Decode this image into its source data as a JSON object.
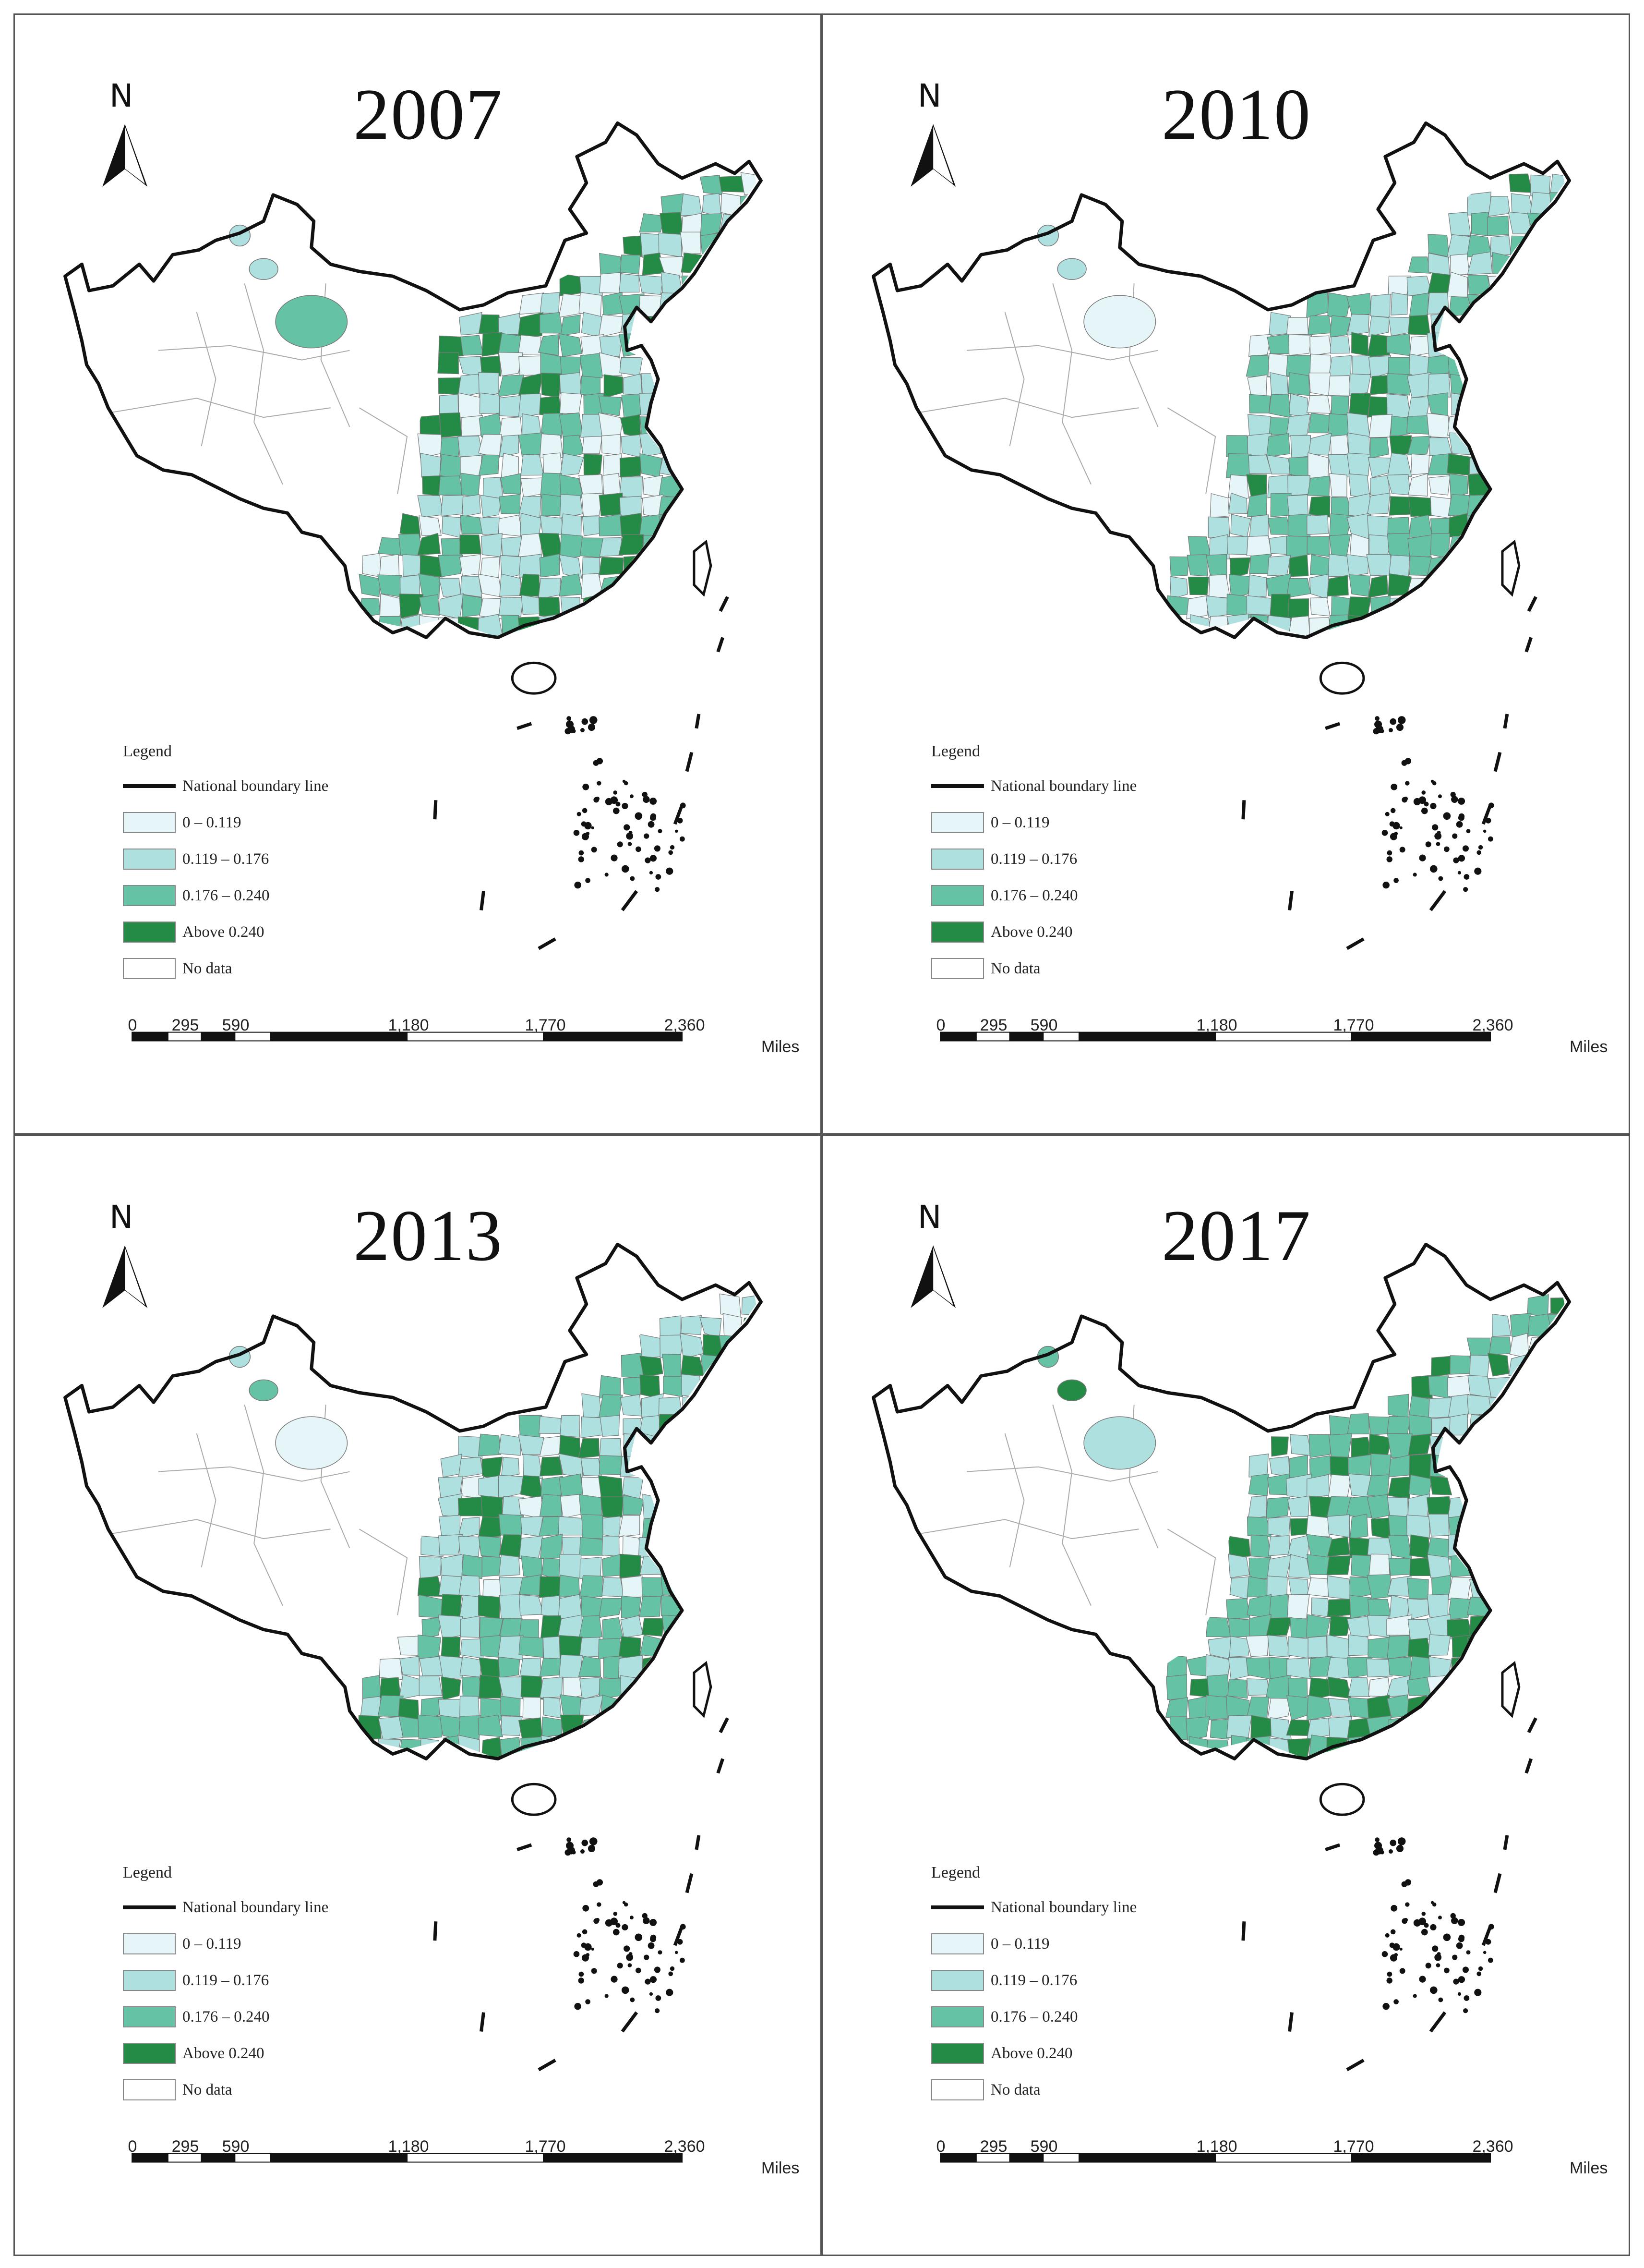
{
  "figure": {
    "panels": [
      {
        "year": "2007"
      },
      {
        "year": "2010"
      },
      {
        "year": "2013"
      },
      {
        "year": "2017"
      }
    ],
    "north_label": "N",
    "legend": {
      "title": "Legend",
      "items": [
        {
          "label": "National boundary line",
          "type": "line",
          "color": "#111111"
        },
        {
          "label": "0 – 0.119",
          "type": "fill",
          "color": "#e6f5f7"
        },
        {
          "label": "0.119 – 0.176",
          "type": "fill",
          "color": "#ade0df"
        },
        {
          "label": "0.176 – 0.240",
          "type": "fill",
          "color": "#66c2a4"
        },
        {
          "label": "Above 0.240",
          "type": "fill",
          "color": "#238b45"
        },
        {
          "label": "No data",
          "type": "fill",
          "color": "#ffffff"
        }
      ]
    },
    "scale_bar": {
      "ticks": [
        "0",
        "295",
        "590",
        "1,180",
        "1,770",
        "2,360"
      ],
      "unit": "Miles"
    },
    "colors": {
      "class1": "#e6f5f7",
      "class2": "#ade0df",
      "class3": "#66c2a4",
      "class4": "#238b45",
      "nodata": "#ffffff",
      "boundary": "#111111",
      "panel_border": "#555555"
    }
  }
}
